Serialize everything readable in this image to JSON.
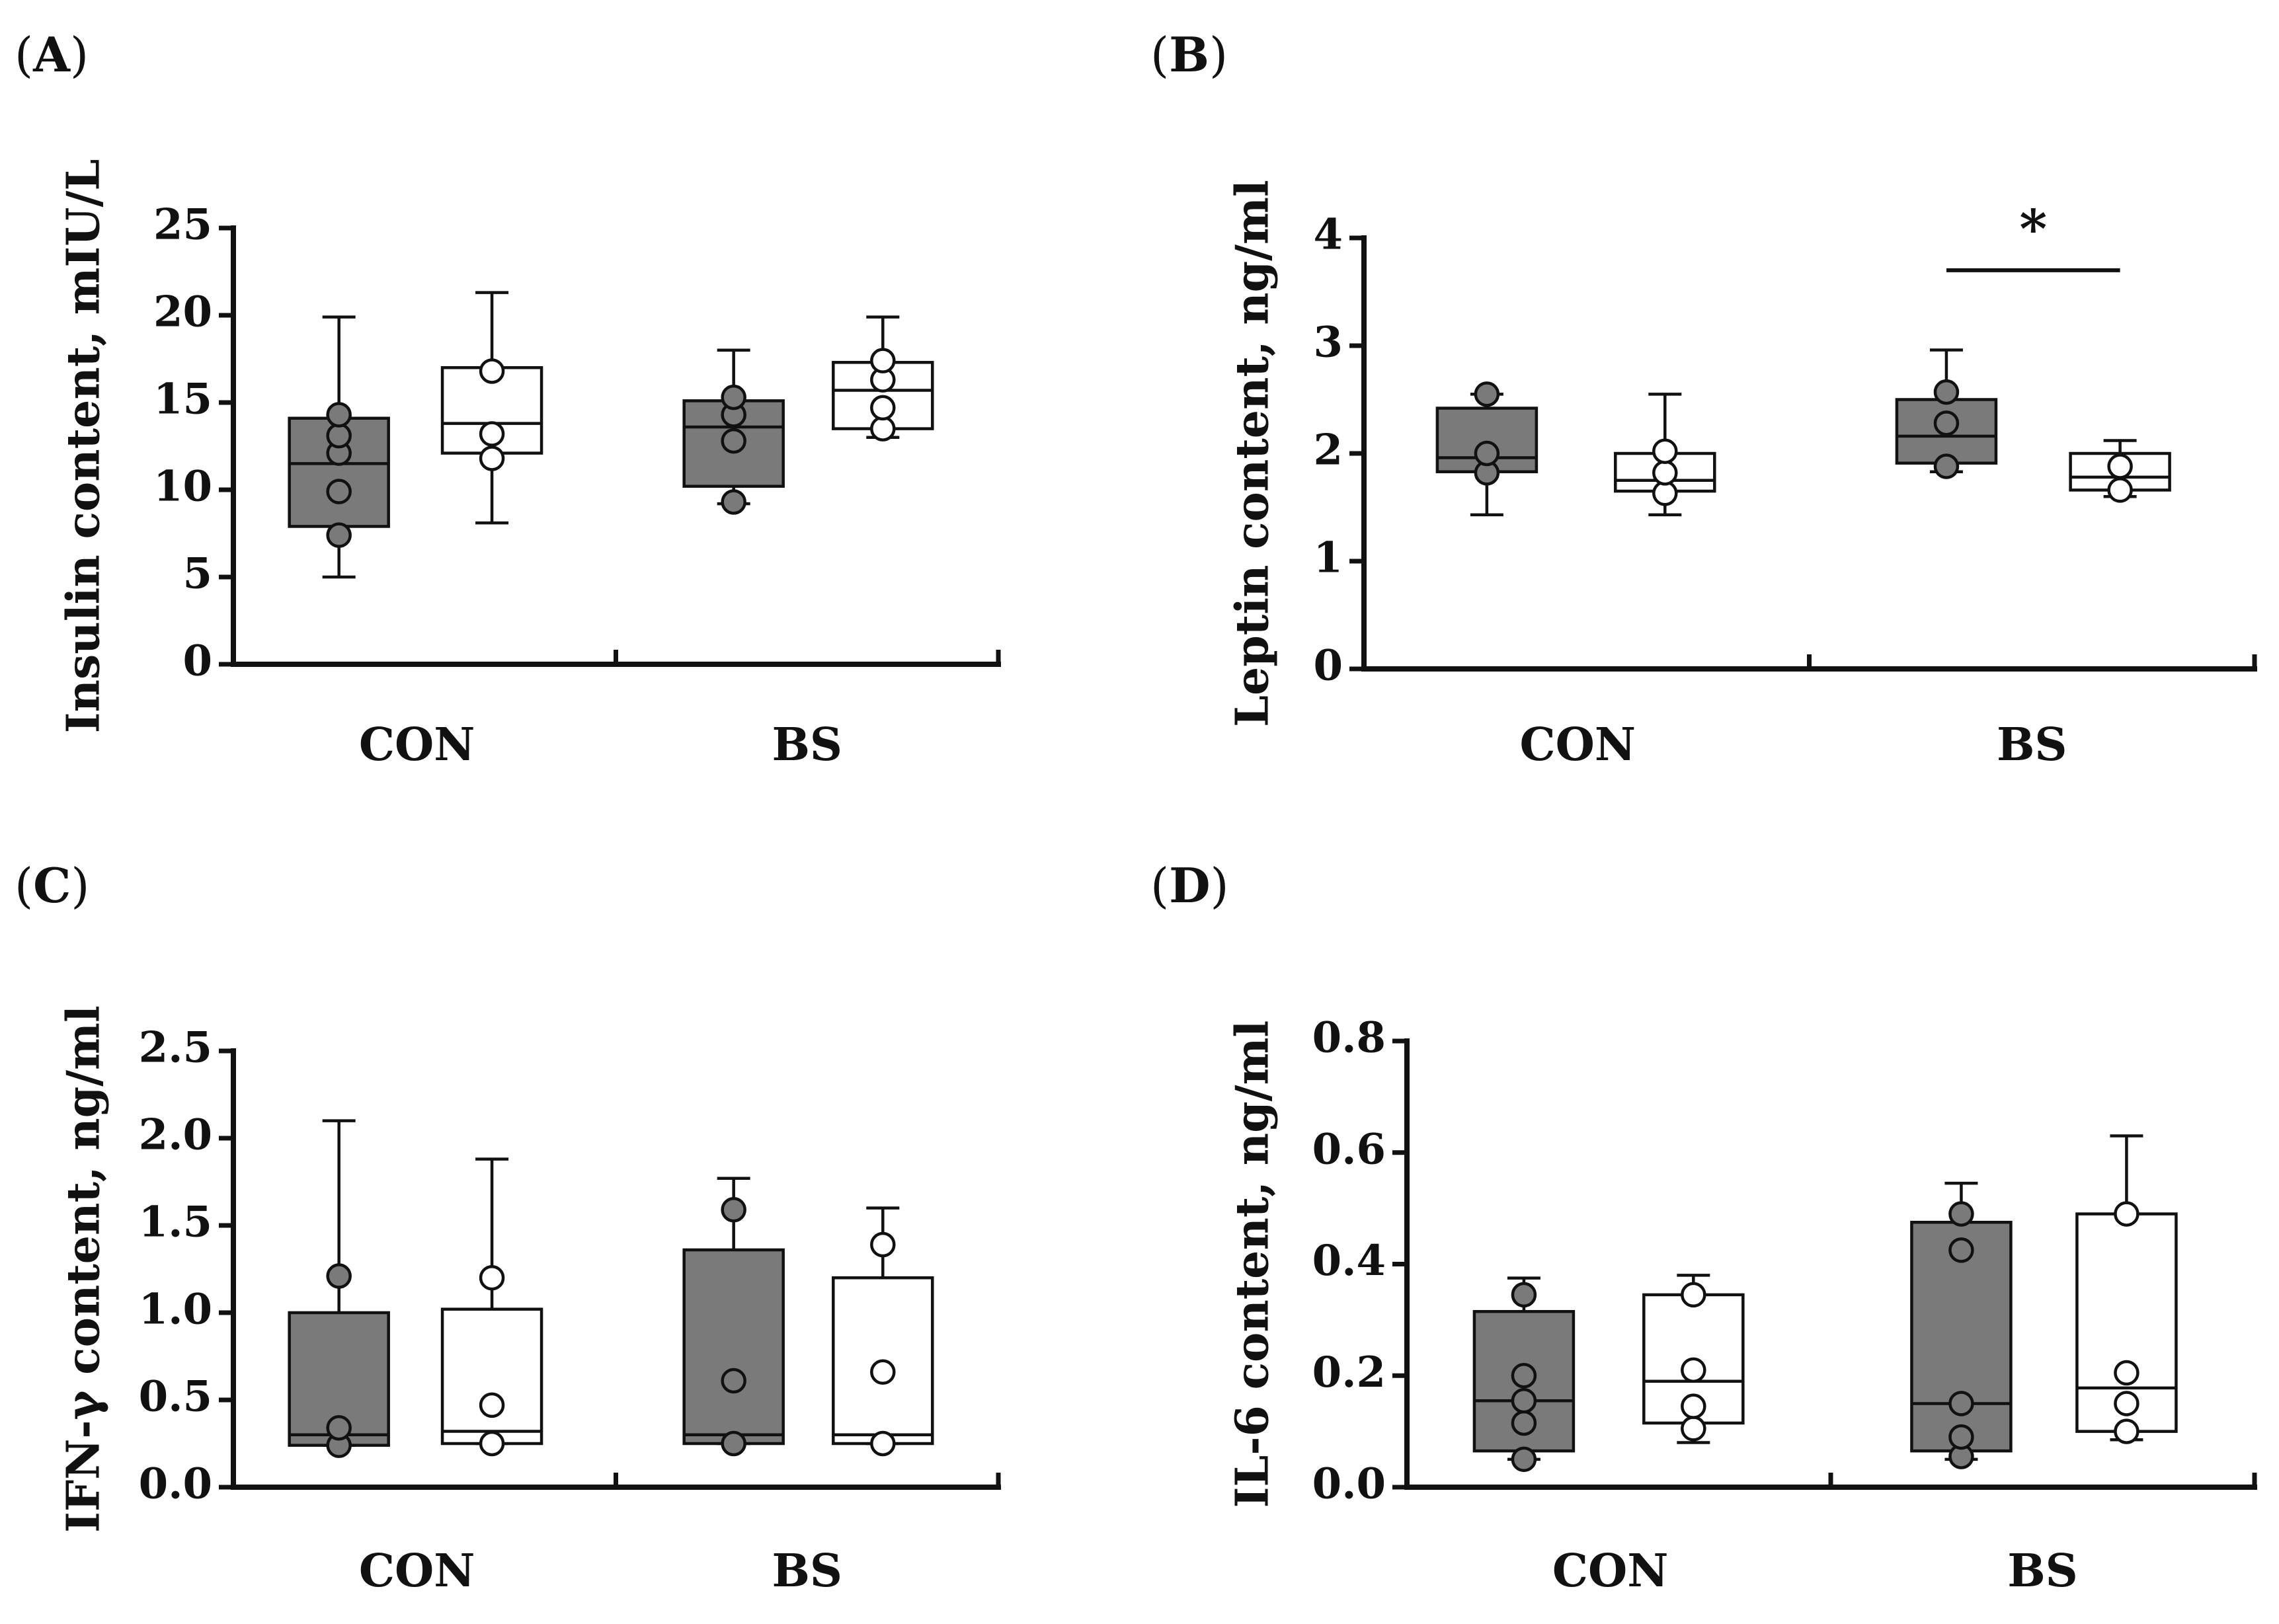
{
  "chart_data": [
    {
      "type": "box",
      "panel_label": "A",
      "ylabel": "Insulin content, mIU/L",
      "ylim": [
        0,
        25
      ],
      "yticks": [
        0,
        5,
        10,
        15,
        20,
        25
      ],
      "categories": [
        "CON",
        "BS"
      ],
      "series": [
        {
          "name": "group-dark",
          "color": "#7a7a7a",
          "boxes": [
            {
              "category": "CON",
              "min": 5.0,
              "q1": 7.9,
              "median": 11.5,
              "q3": 14.1,
              "max": 19.9,
              "points": [
                7.4,
                9.9,
                12.1,
                13.1,
                14.3
              ]
            },
            {
              "category": "BS",
              "min": 9.2,
              "q1": 10.2,
              "median": 13.6,
              "q3": 15.1,
              "max": 18.0,
              "points": [
                9.3,
                12.8,
                14.3,
                15.3
              ]
            }
          ]
        },
        {
          "name": "group-light",
          "color": "#ffffff",
          "boxes": [
            {
              "category": "CON",
              "min": 8.1,
              "q1": 12.1,
              "median": 13.8,
              "q3": 17.0,
              "max": 21.3,
              "points": [
                11.8,
                13.2,
                16.8
              ]
            },
            {
              "category": "BS",
              "min": 13.0,
              "q1": 13.5,
              "median": 15.7,
              "q3": 17.3,
              "max": 19.9,
              "points": [
                13.5,
                14.7,
                16.3,
                17.4
              ]
            }
          ]
        }
      ],
      "significance": []
    },
    {
      "type": "box",
      "panel_label": "B",
      "ylabel": "Leptin content, ng/ml",
      "ylim": [
        0,
        4
      ],
      "yticks": [
        0,
        1,
        2,
        3,
        4
      ],
      "categories": [
        "CON",
        "BS"
      ],
      "series": [
        {
          "name": "group-dark",
          "color": "#7a7a7a",
          "boxes": [
            {
              "category": "CON",
              "min": 1.43,
              "q1": 1.83,
              "median": 1.96,
              "q3": 2.42,
              "max": 2.55,
              "points": [
                1.82,
                2.0,
                2.55
              ]
            },
            {
              "category": "BS",
              "min": 1.83,
              "q1": 1.91,
              "median": 2.16,
              "q3": 2.5,
              "max": 2.96,
              "points": [
                1.88,
                2.28,
                2.57
              ]
            }
          ]
        },
        {
          "name": "group-light",
          "color": "#ffffff",
          "boxes": [
            {
              "category": "CON",
              "min": 1.43,
              "q1": 1.65,
              "median": 1.75,
              "q3": 2.0,
              "max": 2.55,
              "points": [
                1.63,
                1.82,
                2.02
              ]
            },
            {
              "category": "BS",
              "min": 1.6,
              "q1": 1.66,
              "median": 1.78,
              "q3": 2.0,
              "max": 2.12,
              "points": [
                1.66,
                1.88
              ]
            }
          ]
        }
      ],
      "significance": [
        {
          "category": "BS",
          "label": "*",
          "y": 3.7
        }
      ]
    },
    {
      "type": "box",
      "panel_label": "C",
      "ylabel": "IFN-γ content, ng/ml",
      "ylim": [
        0,
        2.5
      ],
      "yticks": [
        "0.0",
        "0.5",
        "1.0",
        "1.5",
        "2.0",
        "2.5"
      ],
      "categories": [
        "CON",
        "BS"
      ],
      "series": [
        {
          "name": "group-dark",
          "color": "#7a7a7a",
          "boxes": [
            {
              "category": "CON",
              "min": 0.24,
              "q1": 0.24,
              "median": 0.3,
              "q3": 1.0,
              "max": 2.1,
              "points": [
                0.24,
                0.34,
                1.21
              ]
            },
            {
              "category": "BS",
              "min": 0.25,
              "q1": 0.25,
              "median": 0.3,
              "q3": 1.36,
              "max": 1.77,
              "points": [
                0.25,
                0.61,
                1.59
              ]
            }
          ]
        },
        {
          "name": "group-light",
          "color": "#ffffff",
          "boxes": [
            {
              "category": "CON",
              "min": 0.25,
              "q1": 0.25,
              "median": 0.32,
              "q3": 1.02,
              "max": 1.88,
              "points": [
                0.25,
                0.47,
                1.2
              ]
            },
            {
              "category": "BS",
              "min": 0.25,
              "q1": 0.25,
              "median": 0.3,
              "q3": 1.2,
              "max": 1.6,
              "points": [
                0.25,
                0.66,
                1.39
              ]
            }
          ]
        }
      ],
      "significance": []
    },
    {
      "type": "box",
      "panel_label": "D",
      "ylabel": "IL-6 content, ng/ml",
      "ylim": [
        0,
        0.8
      ],
      "yticks": [
        "0.0",
        "0.2",
        "0.4",
        "0.6",
        "0.8"
      ],
      "categories": [
        "CON",
        "BS"
      ],
      "series": [
        {
          "name": "group-dark",
          "color": "#7a7a7a",
          "boxes": [
            {
              "category": "CON",
              "min": 0.05,
              "q1": 0.065,
              "median": 0.155,
              "q3": 0.315,
              "max": 0.375,
              "points": [
                0.05,
                0.115,
                0.155,
                0.2,
                0.345
              ]
            },
            {
              "category": "BS",
              "min": 0.05,
              "q1": 0.065,
              "median": 0.15,
              "q3": 0.475,
              "max": 0.545,
              "points": [
                0.055,
                0.09,
                0.15,
                0.425,
                0.49
              ]
            }
          ]
        },
        {
          "name": "group-light",
          "color": "#ffffff",
          "boxes": [
            {
              "category": "CON",
              "min": 0.08,
              "q1": 0.115,
              "median": 0.19,
              "q3": 0.345,
              "max": 0.38,
              "points": [
                0.105,
                0.145,
                0.21,
                0.345
              ]
            },
            {
              "category": "BS",
              "min": 0.085,
              "q1": 0.1,
              "median": 0.178,
              "q3": 0.49,
              "max": 0.63,
              "points": [
                0.1,
                0.15,
                0.205,
                0.49
              ]
            }
          ]
        }
      ],
      "significance": []
    }
  ]
}
